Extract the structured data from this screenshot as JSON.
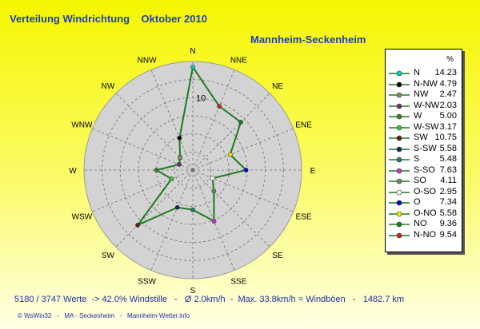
{
  "title": "Verteilung Windrichtung    Oktober 2010",
  "location": "Mannheim-Seckenheim",
  "stats_line": "5180 / 3747 Werte  -> 42.0% Windstille   -   Ø 2.0km/h  -  Max. 33.8km/h = Windböen   -   1482.7 km",
  "credits": "© WsWin32   -   MA - Seckenheim   -   Mannheim-Wetter.info",
  "legend_header": "%",
  "colors": {
    "polar_background": "#d3d3d3",
    "ring_color": "#707070",
    "line_color": "#1e7a1e",
    "title_color": "#1f3fb3"
  },
  "chart_data": {
    "type": "radar",
    "directions": [
      "N",
      "NNE",
      "NE",
      "ENE",
      "E",
      "ESE",
      "SE",
      "SSE",
      "S",
      "SSW",
      "SW",
      "WSW",
      "W",
      "WNW",
      "NW",
      "NNW"
    ],
    "ring_labels": [
      "10"
    ],
    "rmax": 15,
    "ring_step": 2.5,
    "series": [
      {
        "values": [
          14.23,
          9.54,
          9.36,
          5.58,
          7.34,
          2.95,
          4.11,
          7.63,
          5.48,
          5.58,
          10.75,
          3.17,
          5.0,
          2.03,
          2.47,
          4.79
        ]
      }
    ],
    "legend": [
      {
        "dir": "N",
        "value": "14.23",
        "color": "#00cccc"
      },
      {
        "dir": "N-NW",
        "value": "4.79",
        "color": "#000000"
      },
      {
        "dir": "NW",
        "value": "2.47",
        "color": "#8a8a5c"
      },
      {
        "dir": "W-NW",
        "value": "2.03",
        "color": "#7a2a7a"
      },
      {
        "dir": "W",
        "value": "5.00",
        "color": "#4a7a2a"
      },
      {
        "dir": "W-SW",
        "value": "3.17",
        "color": "#33cc33"
      },
      {
        "dir": "SW",
        "value": "10.75",
        "color": "#6b1a1a"
      },
      {
        "dir": "S-SW",
        "value": "5.58",
        "color": "#1a2a5a"
      },
      {
        "dir": "S",
        "value": "5.48",
        "color": "#2a7a7a"
      },
      {
        "dir": "S-SO",
        "value": "7.63",
        "color": "#cc33cc"
      },
      {
        "dir": "SO",
        "value": "4.11",
        "color": "#6a8a6a"
      },
      {
        "dir": "O-SO",
        "value": "2.95",
        "color": "#ffffff"
      },
      {
        "dir": "O",
        "value": "7.34",
        "color": "#0000cc"
      },
      {
        "dir": "O-NO",
        "value": "5.58",
        "color": "#eeee00"
      },
      {
        "dir": "NO",
        "value": "9.36",
        "color": "#1e7a1e"
      },
      {
        "dir": "N-NO",
        "value": "9.54",
        "color": "#cc2222"
      }
    ]
  }
}
